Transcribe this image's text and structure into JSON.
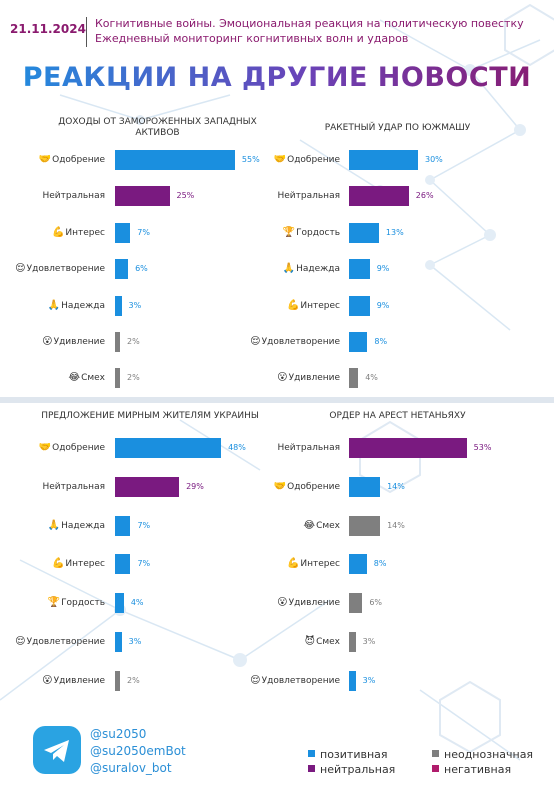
{
  "header": {
    "date": "21.11.2024",
    "line1": "Когнитивные войны. Эмоциональная реакция на политическую повестку",
    "line2": "Ежедневный мониторинг когнитивных волн и ударов"
  },
  "title": "РЕАКЦИИ НА ДРУГИЕ НОВОСТИ",
  "colors": {
    "positive": "#1a8fdf",
    "neutral": "#7a1a80",
    "ambiguous": "#7f7f7f",
    "negative": "#b01c6c"
  },
  "chart_data": [
    {
      "type": "bar",
      "title": "ДОХОДЫ ОТ ЗАМОРОЖЕННЫХ ЗАПАДНЫХ АКТИВОВ",
      "categories": [
        "Одобрение",
        "Нейтральная",
        "Интерес",
        "Удовлетворение",
        "Надежда",
        "Удивление",
        "Смех"
      ],
      "icons": [
        "heart-hands-icon",
        "",
        "flex-icon",
        "smile-icon",
        "pray-icon",
        "surprised-icon",
        "laugh-icon"
      ],
      "emoji": [
        "🤝",
        "",
        "💪",
        "😌",
        "🙏",
        "😮",
        "😂"
      ],
      "values": [
        55,
        25,
        7,
        6,
        3,
        2,
        2
      ],
      "labels": [
        "55%",
        "25%",
        "7%",
        "6%",
        "3%",
        "2%",
        "2%"
      ],
      "kinds": [
        "positive",
        "neutral",
        "positive",
        "positive",
        "positive",
        "ambiguous",
        "ambiguous"
      ]
    },
    {
      "type": "bar",
      "title": "РАКЕТНЫЙ УДАР ПО ЮЖМАШУ",
      "categories": [
        "Одобрение",
        "Нейтральная",
        "Гордость",
        "Надежда",
        "Интерес",
        "Удовлетворение",
        "Удивление"
      ],
      "icons": [
        "heart-hands-icon",
        "",
        "trophy-icon",
        "pray-icon",
        "flex-icon",
        "smile-icon",
        "surprised-icon"
      ],
      "emoji": [
        "🤝",
        "",
        "🏆",
        "🙏",
        "💪",
        "😌",
        "😮"
      ],
      "values": [
        30,
        26,
        13,
        9,
        9,
        8,
        4
      ],
      "labels": [
        "30%",
        "26%",
        "13%",
        "9%",
        "9%",
        "8%",
        "4%"
      ],
      "kinds": [
        "positive",
        "neutral",
        "positive",
        "positive",
        "positive",
        "positive",
        "ambiguous"
      ]
    },
    {
      "type": "bar",
      "title": "ПРЕДЛОЖЕНИЕ МИРНЫМ ЖИТЕЛЯМ УКРАИНЫ",
      "categories": [
        "Одобрение",
        "Нейтральная",
        "Надежда",
        "Интерес",
        "Гордость",
        "Удовлетворение",
        "Удивление"
      ],
      "icons": [
        "heart-hands-icon",
        "",
        "pray-icon",
        "flex-icon",
        "trophy-icon",
        "smile-icon",
        "surprised-icon"
      ],
      "emoji": [
        "🤝",
        "",
        "🙏",
        "💪",
        "🏆",
        "😌",
        "😮"
      ],
      "values": [
        48,
        29,
        7,
        7,
        4,
        3,
        2
      ],
      "labels": [
        "48%",
        "29%",
        "7%",
        "7%",
        "4%",
        "3%",
        "2%"
      ],
      "kinds": [
        "positive",
        "neutral",
        "positive",
        "positive",
        "positive",
        "positive",
        "ambiguous"
      ]
    },
    {
      "type": "bar",
      "title": "ОРДЕР НА АРЕСТ НЕТАНЬЯХУ",
      "categories": [
        "Нейтральная",
        "Одобрение",
        "Смех",
        "Интерес",
        "Удивление",
        "Смех",
        "Удовлетворение"
      ],
      "icons": [
        "",
        "heart-hands-icon",
        "laugh-icon",
        "flex-icon",
        "surprised-icon",
        "devil-icon",
        "smile-icon"
      ],
      "emoji": [
        "",
        "🤝",
        "😂",
        "💪",
        "😮",
        "😈",
        "😌"
      ],
      "values": [
        53,
        14,
        14,
        8,
        6,
        3,
        3
      ],
      "labels": [
        "53%",
        "14%",
        "14%",
        "8%",
        "6%",
        "3%",
        "3%"
      ],
      "kinds": [
        "neutral",
        "positive",
        "ambiguous",
        "positive",
        "ambiguous",
        "ambiguous",
        "positive"
      ]
    }
  ],
  "footer": {
    "handles": [
      "@su2050",
      "@su2050emBot",
      "@suralov_bot"
    ],
    "legend": [
      {
        "label": "позитивная",
        "kind": "positive"
      },
      {
        "label": "неоднозначная",
        "kind": "ambiguous"
      },
      {
        "label": "нейтральная",
        "kind": "neutral"
      },
      {
        "label": "негативная",
        "kind": "negative"
      }
    ]
  }
}
